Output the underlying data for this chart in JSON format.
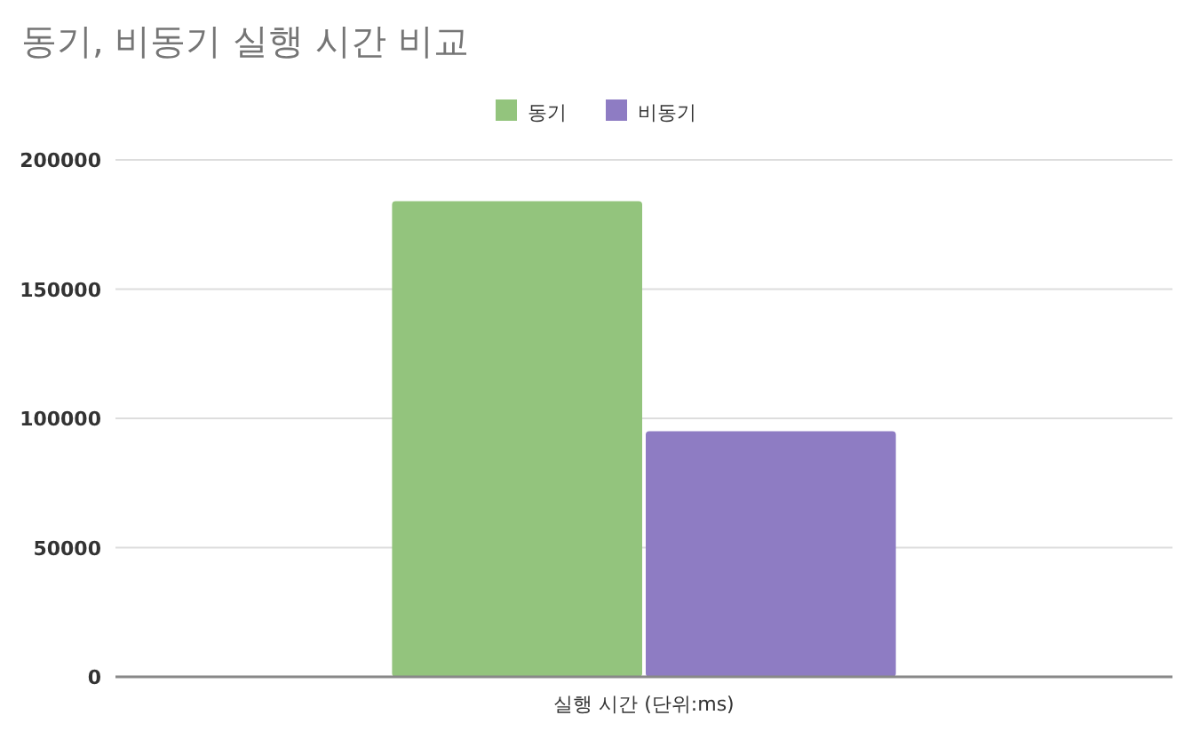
{
  "chart_data": {
    "type": "bar",
    "title": "동기, 비동기 실행 시간 비교",
    "categories": [
      "실행 시간 (단위:ms)"
    ],
    "series": [
      {
        "name": "동기",
        "color": "#93c47d",
        "values": [
          184000
        ]
      },
      {
        "name": "비동기",
        "color": "#8e7cc3",
        "values": [
          95000
        ]
      }
    ],
    "ylim": [
      0,
      200000
    ],
    "yticks": [
      0,
      50000,
      100000,
      150000,
      200000
    ],
    "grid": "y",
    "legend": "top"
  }
}
